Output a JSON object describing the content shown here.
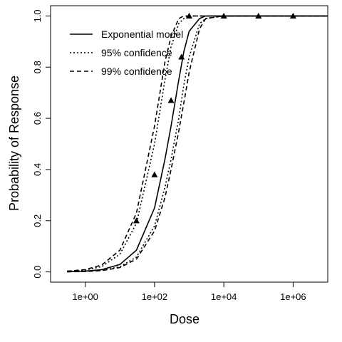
{
  "chart_data": {
    "type": "line",
    "title": "",
    "xlabel": "Dose",
    "ylabel": "Probability of Response",
    "x_scale": "log10",
    "xlim": [
      0.1,
      10000000
    ],
    "ylim": [
      -0.04,
      1.04
    ],
    "x_ticks": [
      {
        "value": 1,
        "label": "1e+00"
      },
      {
        "value": 100,
        "label": "1e+02"
      },
      {
        "value": 10000,
        "label": "1e+04"
      },
      {
        "value": 1000000,
        "label": "1e+06"
      }
    ],
    "y_ticks": [
      {
        "value": 0.0,
        "label": "0.0"
      },
      {
        "value": 0.2,
        "label": "0.2"
      },
      {
        "value": 0.4,
        "label": "0.4"
      },
      {
        "value": 0.6,
        "label": "0.6"
      },
      {
        "value": 0.8,
        "label": "0.8"
      },
      {
        "value": 1.0,
        "label": "1.0"
      }
    ],
    "grid": false,
    "legend_position": "top-left",
    "legend": [
      {
        "label": "Exponential model",
        "dash": "solid"
      },
      {
        "label": "95% confidence",
        "dash": "dotted"
      },
      {
        "label": "99% confidence",
        "dash": "dashed"
      }
    ],
    "series": [
      {
        "name": "Exponential model",
        "style": "solid",
        "x": [
          0.3,
          1,
          3,
          10,
          30,
          100,
          200,
          300,
          500,
          700,
          1000,
          2000,
          3000,
          10000,
          100000,
          1000000,
          10000000
        ],
        "y": [
          0.001,
          0.003,
          0.009,
          0.029,
          0.085,
          0.25,
          0.44,
          0.57,
          0.75,
          0.86,
          0.94,
          0.99,
          1.0,
          1.0,
          1.0,
          1.0,
          1.0
        ]
      },
      {
        "name": "95% confidence",
        "style": "dotted",
        "x": [
          0.3,
          1,
          3,
          10,
          30,
          100,
          200,
          300,
          500,
          700,
          1000,
          2000,
          3000,
          10000,
          100000,
          1000000,
          10000000
        ],
        "y": [
          0.002,
          0.007,
          0.021,
          0.069,
          0.19,
          0.5,
          0.75,
          0.88,
          0.97,
          0.99,
          1.0,
          1.0,
          1.0,
          1.0,
          1.0,
          1.0,
          1.0
        ]
      },
      {
        "name": "95% confidence",
        "style": "dotted",
        "x": [
          0.3,
          1,
          3,
          10,
          30,
          100,
          200,
          300,
          500,
          700,
          1000,
          2000,
          3000,
          10000,
          100000,
          1000000,
          10000000
        ],
        "y": [
          0.0005,
          0.002,
          0.006,
          0.02,
          0.058,
          0.18,
          0.33,
          0.44,
          0.6,
          0.73,
          0.84,
          0.97,
          0.99,
          1.0,
          1.0,
          1.0,
          1.0
        ]
      },
      {
        "name": "99% confidence",
        "style": "dashed",
        "x": [
          0.3,
          1,
          3,
          10,
          30,
          100,
          200,
          300,
          500,
          700,
          1000,
          2000,
          3000,
          10000,
          100000,
          1000000,
          10000000
        ],
        "y": [
          0.003,
          0.009,
          0.027,
          0.085,
          0.23,
          0.57,
          0.82,
          0.92,
          0.99,
          1.0,
          1.0,
          1.0,
          1.0,
          1.0,
          1.0,
          1.0,
          1.0
        ]
      },
      {
        "name": "99% confidence",
        "style": "dashed",
        "x": [
          0.3,
          1,
          3,
          10,
          30,
          100,
          200,
          300,
          500,
          700,
          1000,
          2000,
          3000,
          10000,
          100000,
          1000000,
          10000000
        ],
        "y": [
          0.0004,
          0.0015,
          0.005,
          0.017,
          0.05,
          0.16,
          0.29,
          0.4,
          0.55,
          0.66,
          0.78,
          0.95,
          0.99,
          1.0,
          1.0,
          1.0,
          1.0
        ]
      }
    ],
    "observed_points": {
      "x": [
        30,
        100,
        300,
        600,
        1000,
        10000,
        100000,
        1000000
      ],
      "y": [
        0.2,
        0.38,
        0.67,
        0.84,
        1.0,
        1.0,
        1.0,
        1.0
      ]
    }
  }
}
